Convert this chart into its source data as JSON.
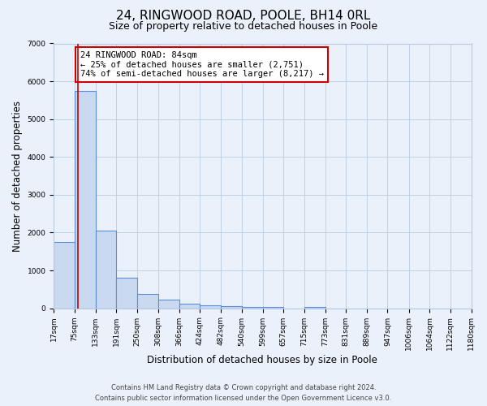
{
  "title": "24, RINGWOOD ROAD, POOLE, BH14 0RL",
  "subtitle": "Size of property relative to detached houses in Poole",
  "xlabel": "Distribution of detached houses by size in Poole",
  "ylabel": "Number of detached properties",
  "bin_edges": [
    17,
    75,
    133,
    191,
    250,
    308,
    366,
    424,
    482,
    540,
    599,
    657,
    715,
    773,
    831,
    889,
    947,
    1006,
    1064,
    1122,
    1180
  ],
  "bar_heights": [
    1750,
    5750,
    2050,
    800,
    370,
    220,
    120,
    75,
    55,
    40,
    40,
    0,
    40,
    0,
    0,
    0,
    0,
    0,
    0,
    0
  ],
  "bar_color": "#c8d9f0",
  "bar_edge_color": "#5b8dd9",
  "bar_edge_width": 0.8,
  "background_color": "#eaf1fb",
  "grid_color": "#b8cce4",
  "ylim": [
    0,
    7000
  ],
  "xlim_left": 17,
  "xlim_right": 1180,
  "property_size": 84,
  "red_line_color": "#cc0000",
  "annotation_line1": "24 RINGWOOD ROAD: 84sqm",
  "annotation_line2": "← 25% of detached houses are smaller (2,751)",
  "annotation_line3": "74% of semi-detached houses are larger (8,217) →",
  "annotation_box_edge_color": "#cc0000",
  "annotation_box_face_color": "#ffffff",
  "footer_line1": "Contains HM Land Registry data © Crown copyright and database right 2024.",
  "footer_line2": "Contains public sector information licensed under the Open Government Licence v3.0.",
  "tick_labels": [
    "17sqm",
    "75sqm",
    "133sqm",
    "191sqm",
    "250sqm",
    "308sqm",
    "366sqm",
    "424sqm",
    "482sqm",
    "540sqm",
    "599sqm",
    "657sqm",
    "715sqm",
    "773sqm",
    "831sqm",
    "889sqm",
    "947sqm",
    "1006sqm",
    "1064sqm",
    "1122sqm",
    "1180sqm"
  ],
  "title_fontsize": 11,
  "subtitle_fontsize": 9,
  "axis_label_fontsize": 8.5,
  "tick_fontsize": 6.5,
  "annotation_fontsize": 7.5,
  "footer_fontsize": 6.0,
  "ann_x_data": 90,
  "ann_y_data": 6800
}
